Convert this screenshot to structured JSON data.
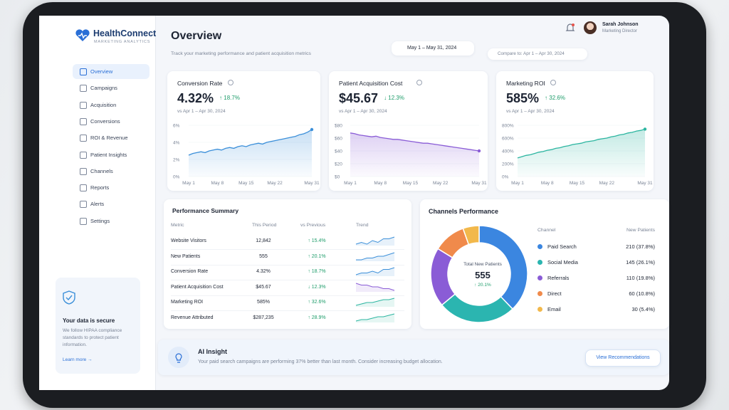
{
  "sidebar": {
    "brand": "HealthConnect",
    "tagline": "MARKETING ANALYTICS",
    "nav": [
      "Overview",
      "Campaigns",
      "Acquisition",
      "Conversions",
      "ROI & Revenue",
      "Patient Insights",
      "Channels",
      "Reports",
      "Alerts",
      "Settings"
    ],
    "secure": {
      "title": "Your data is secure",
      "text": "We follow HIPAA compliance standards to protect patient information.",
      "link": "Learn more →"
    }
  },
  "header": {
    "title": "Overview",
    "subtitle": "Track your marketing performance and patient acquisition metrics",
    "date_range": "May 1 – May 31, 2024",
    "compare": "Compare to: Apr 1 – Apr 30, 2024",
    "user": {
      "name": "Sarah Johnson",
      "role": "Marketing Director"
    }
  },
  "kpis": [
    {
      "title": "Conversion Rate",
      "value": "4.32%",
      "change": "↑ 18.7%",
      "compare": "vs Apr 1 – Apr 30, 2024",
      "chart": {
        "type": "line",
        "color": "#3b8fd9",
        "categories": [
          "May 1",
          null,
          null,
          null,
          null,
          null,
          null,
          "May 8",
          null,
          null,
          null,
          null,
          null,
          null,
          "May 15",
          null,
          null,
          null,
          null,
          null,
          null,
          "May 22",
          null,
          null,
          null,
          null,
          null,
          null,
          null,
          null,
          "May 31"
        ],
        "values": [
          2.5,
          2.7,
          2.8,
          2.9,
          2.8,
          3.0,
          3.1,
          3.2,
          3.1,
          3.3,
          3.4,
          3.3,
          3.5,
          3.6,
          3.5,
          3.7,
          3.8,
          3.9,
          3.8,
          4.0,
          4.1,
          4.2,
          4.3,
          4.4,
          4.5,
          4.6,
          4.7,
          4.9,
          5.0,
          5.2,
          5.5
        ],
        "ylim": [
          0,
          6
        ],
        "yticks": [
          {
            "value": 0,
            "label": "0%"
          },
          {
            "value": 2,
            "label": "2%"
          },
          {
            "value": 4,
            "label": "4%"
          },
          {
            "value": 6,
            "label": "6%"
          }
        ],
        "grid": true
      }
    },
    {
      "title": "Patient Acquisition Cost",
      "value": "$45.67",
      "change": "↓ 12.3%",
      "compare": "vs Apr 1 – Apr 30, 2024",
      "chart": {
        "type": "line",
        "color": "#8a5cd6",
        "categories": [
          "May 1",
          null,
          null,
          null,
          null,
          null,
          null,
          "May 8",
          null,
          null,
          null,
          null,
          null,
          null,
          "May 15",
          null,
          null,
          null,
          null,
          null,
          null,
          "May 22",
          null,
          null,
          null,
          null,
          null,
          null,
          null,
          null,
          "May 31"
        ],
        "values": [
          68,
          67,
          65,
          64,
          63,
          62,
          63,
          61,
          60,
          59,
          58,
          58,
          57,
          56,
          55,
          54,
          53,
          52,
          52,
          51,
          50,
          49,
          48,
          47,
          46,
          45,
          44,
          43,
          42,
          41,
          40
        ],
        "ylim": [
          0,
          80
        ],
        "yticks": [
          {
            "value": 0,
            "label": "$0"
          },
          {
            "value": 20,
            "label": "$20"
          },
          {
            "value": 40,
            "label": "$40"
          },
          {
            "value": 60,
            "label": "$60"
          },
          {
            "value": 80,
            "label": "$80"
          }
        ],
        "grid": true
      }
    },
    {
      "title": "Marketing ROI",
      "value": "585%",
      "change": "↑ 32.6%",
      "compare": "vs Apr 1 – Apr 30, 2024",
      "chart": {
        "type": "line",
        "color": "#2bb5a0",
        "categories": [
          "May 1",
          null,
          null,
          null,
          null,
          null,
          null,
          "May 8",
          null,
          null,
          null,
          null,
          null,
          null,
          "May 15",
          null,
          null,
          null,
          null,
          null,
          null,
          "May 22",
          null,
          null,
          null,
          null,
          null,
          null,
          null,
          null,
          "May 31"
        ],
        "values": [
          290,
          310,
          330,
          340,
          360,
          380,
          390,
          410,
          420,
          440,
          450,
          470,
          480,
          500,
          510,
          520,
          540,
          550,
          560,
          580,
          590,
          600,
          620,
          630,
          650,
          660,
          680,
          690,
          710,
          720,
          740
        ],
        "ylim": [
          0,
          800
        ],
        "yticks": [
          {
            "value": 0,
            "label": "0%"
          },
          {
            "value": 200,
            "label": "200%"
          },
          {
            "value": 400,
            "label": "400%"
          },
          {
            "value": 600,
            "label": "600%"
          },
          {
            "value": 800,
            "label": "800%"
          }
        ],
        "grid": true
      }
    }
  ],
  "performance": {
    "title": "Performance Summary",
    "headers": [
      "Metric",
      "This Period",
      "vs Previous",
      "Trend"
    ],
    "rows": [
      {
        "metric": "Website Visitors",
        "value": "12,842",
        "change": "↑ 15.4%",
        "trend_color": "#3b8fd9",
        "trend": [
          3,
          4,
          3,
          5,
          4,
          6,
          6,
          7
        ]
      },
      {
        "metric": "New Patients",
        "value": "555",
        "change": "↑ 20.1%",
        "trend_color": "#3b8fd9",
        "trend": [
          3,
          3,
          4,
          4,
          5,
          5,
          6,
          7
        ]
      },
      {
        "metric": "Conversion Rate",
        "value": "4.32%",
        "change": "↑ 18.7%",
        "trend_color": "#3b8fd9",
        "trend": [
          3,
          4,
          4,
          5,
          4,
          6,
          6,
          7
        ]
      },
      {
        "metric": "Patient Acquisition Cost",
        "value": "$45.67",
        "change": "↓ 12.3%",
        "trend_color": "#8a5cd6",
        "trend": [
          7,
          6,
          6,
          5,
          5,
          4,
          4,
          3
        ]
      },
      {
        "metric": "Marketing ROI",
        "value": "585%",
        "change": "↑ 32.6%",
        "trend_color": "#2bb5a0",
        "trend": [
          2,
          3,
          4,
          4,
          5,
          6,
          6,
          7
        ]
      },
      {
        "metric": "Revenue Attributed",
        "value": "$287,235",
        "change": "↑ 28.9%",
        "trend_color": "#2bb5a0",
        "trend": [
          2,
          3,
          3,
          4,
          5,
          5,
          6,
          7
        ]
      }
    ]
  },
  "channels": {
    "title": "Channels Performance",
    "headers": [
      "Channel",
      "New Patients"
    ],
    "chart": {
      "type": "donut",
      "categories": [
        "Paid Search",
        "Social Media",
        "Referrals",
        "Direct",
        "Email"
      ],
      "values": [
        210,
        145,
        110,
        60,
        30
      ],
      "value_labels": [
        "210 (37.8%)",
        "145 (26.1%)",
        "110 (19.8%)",
        "60 (10.8%)",
        "30 (5.4%)"
      ],
      "colors": [
        "#3b86e0",
        "#2bb5b0",
        "#8a5cd6",
        "#f08a4b",
        "#f2b84b"
      ],
      "center": {
        "label": "Total New Patients",
        "value": "555",
        "change": "↑ 20.1%"
      }
    }
  },
  "insight": {
    "title": "AI Insight",
    "text": "Your paid search campaigns are performing 37% better than last month. Consider increasing budget allocation.",
    "button": "View Recommendations"
  }
}
